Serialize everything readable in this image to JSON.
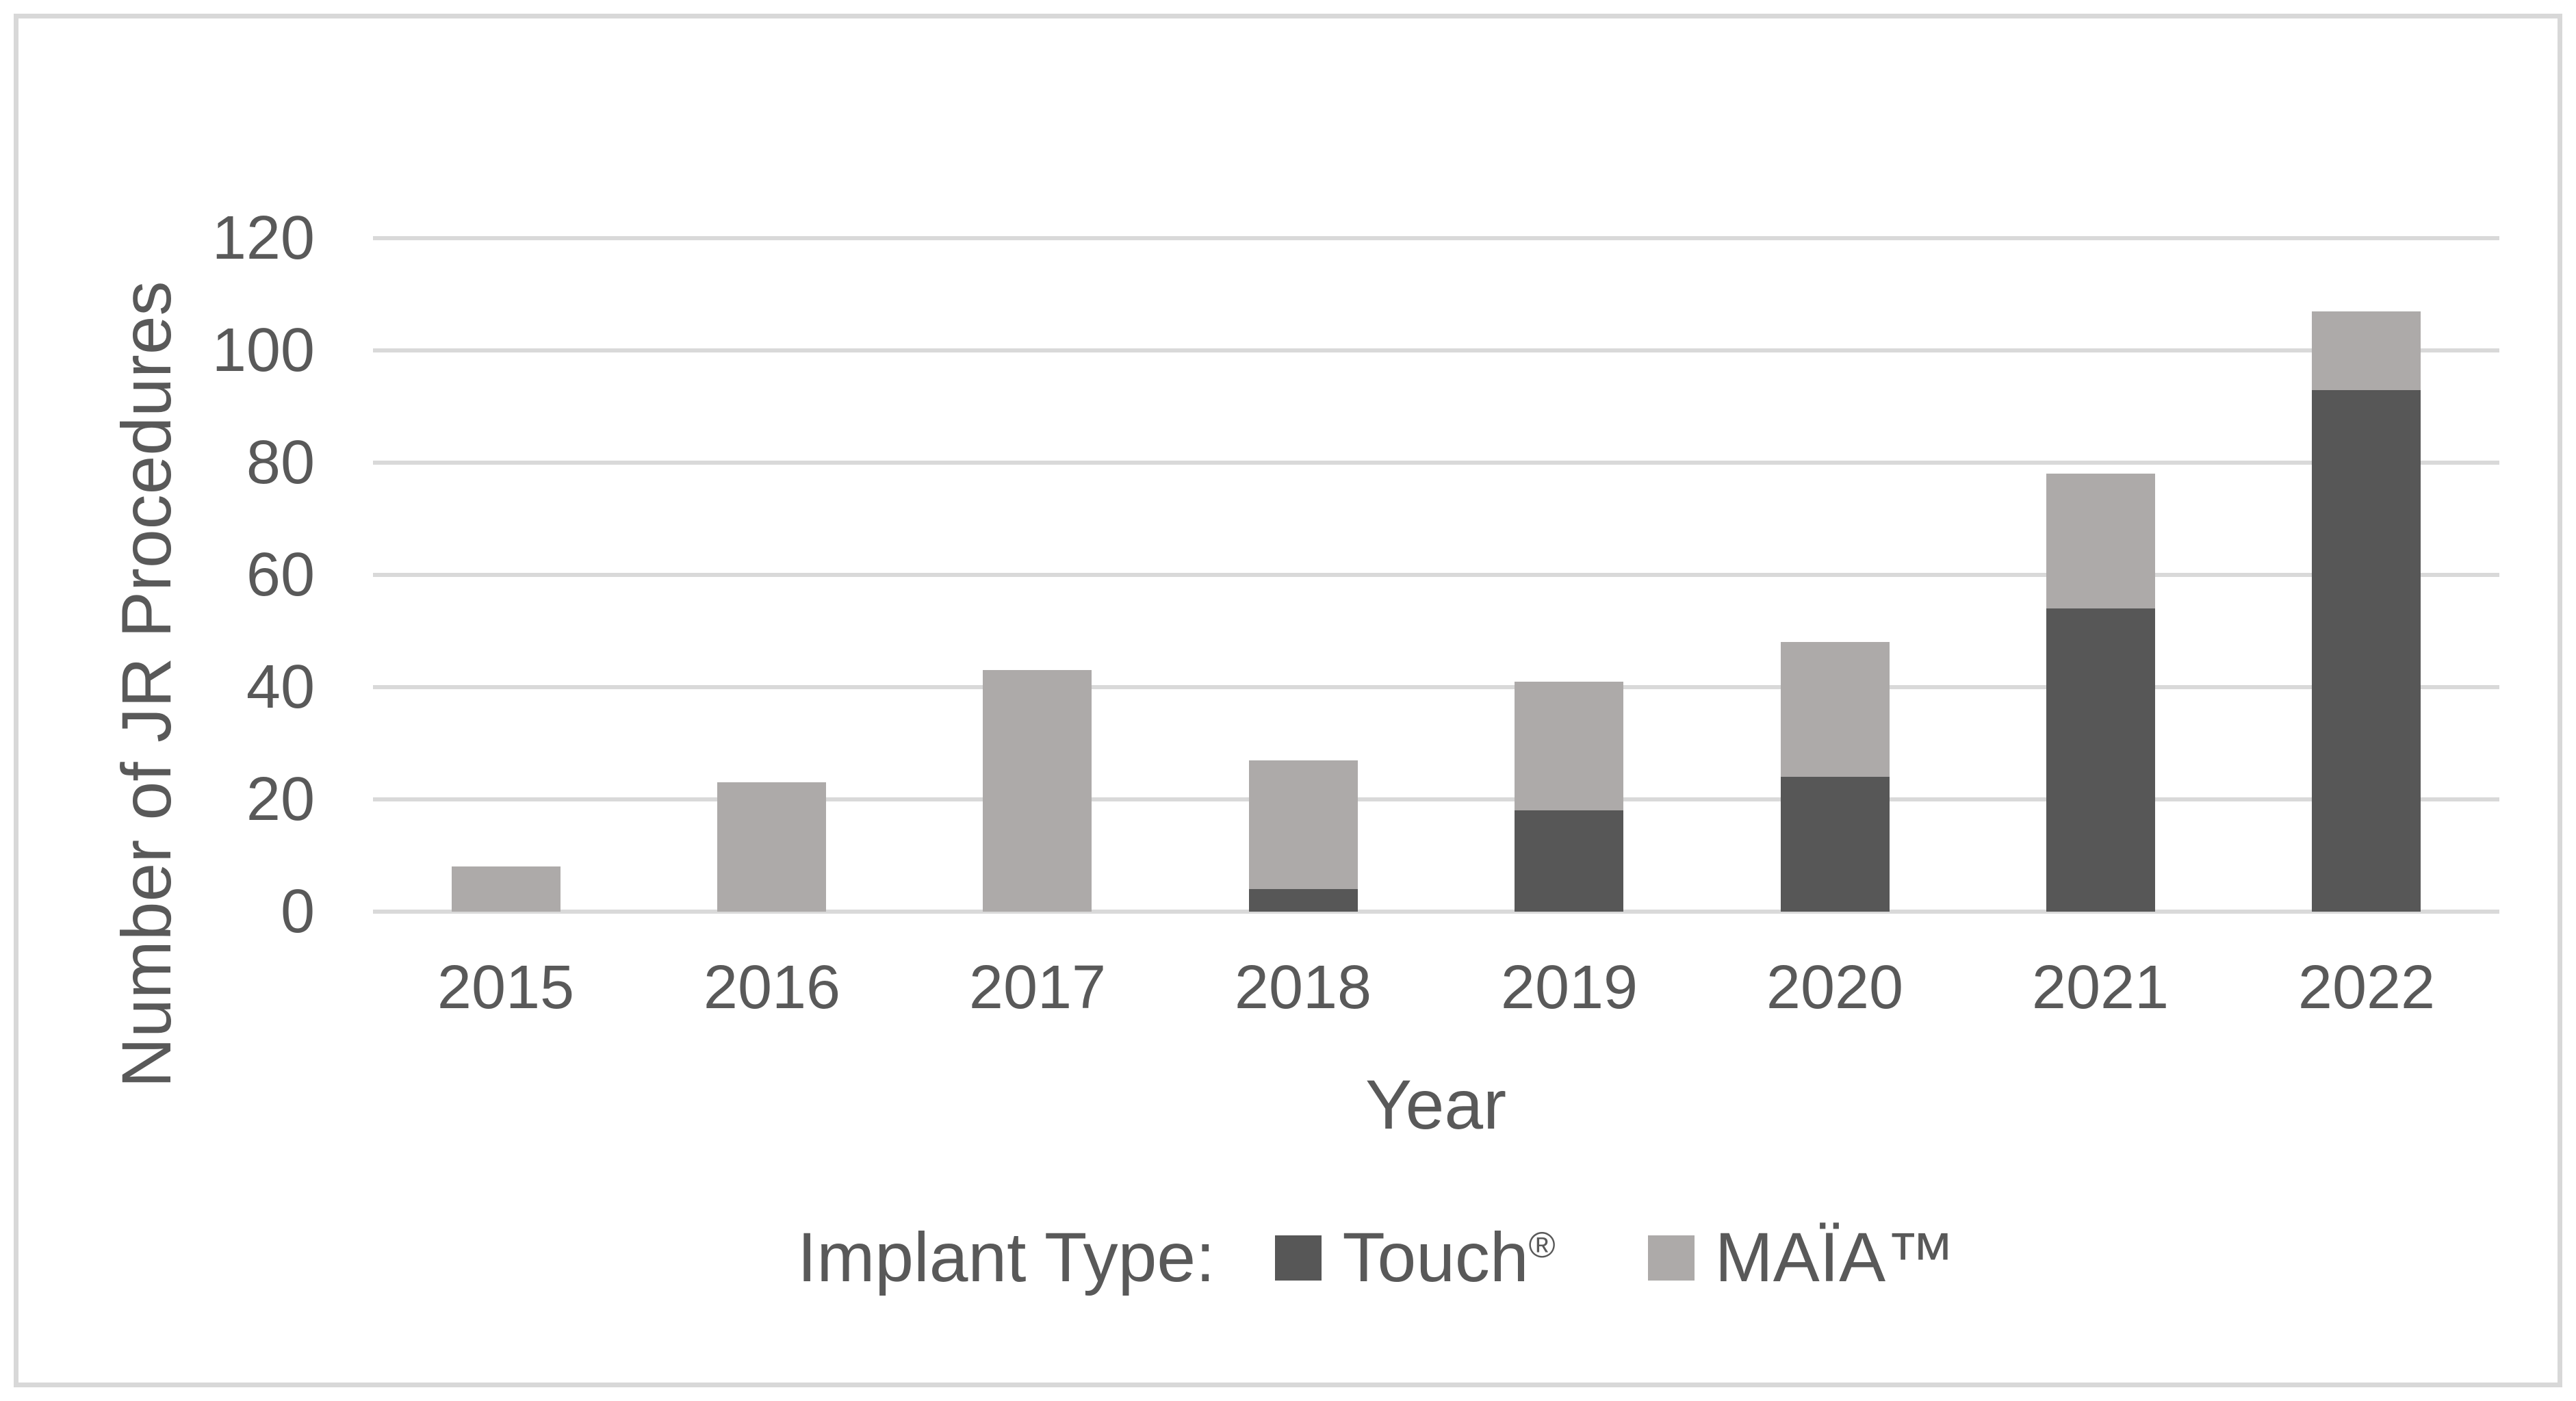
{
  "figure": {
    "background_color": "#FFFFFF",
    "border_color": "#D8D8D8"
  },
  "chart_data": {
    "type": "bar",
    "stacked": true,
    "title": "",
    "categories": [
      "2015",
      "2016",
      "2017",
      "2018",
      "2019",
      "2020",
      "2021",
      "2022"
    ],
    "series": [
      {
        "name": "Touch®",
        "color": "#575757",
        "values": [
          0,
          0,
          0,
          4,
          18,
          24,
          54,
          93
        ]
      },
      {
        "name": "MAÏA™",
        "color": "#ADAAA9",
        "values": [
          8,
          23,
          43,
          23,
          23,
          24,
          24,
          14
        ]
      }
    ],
    "totals": [
      8,
      23,
      43,
      27,
      41,
      48,
      78,
      107
    ],
    "xlabel": "Year",
    "ylabel": "Number of JR Procedures",
    "ylim": [
      0,
      120
    ],
    "yticks": [
      0,
      20,
      40,
      60,
      80,
      100,
      120
    ],
    "grid": "horizontal",
    "gridline_color": "#D9D9D9",
    "axis_text_color": "#595959",
    "legend": {
      "prefix": "Implant Type:",
      "position": "bottom-center",
      "entries": [
        "Touch®",
        "MAÏA™"
      ]
    }
  }
}
